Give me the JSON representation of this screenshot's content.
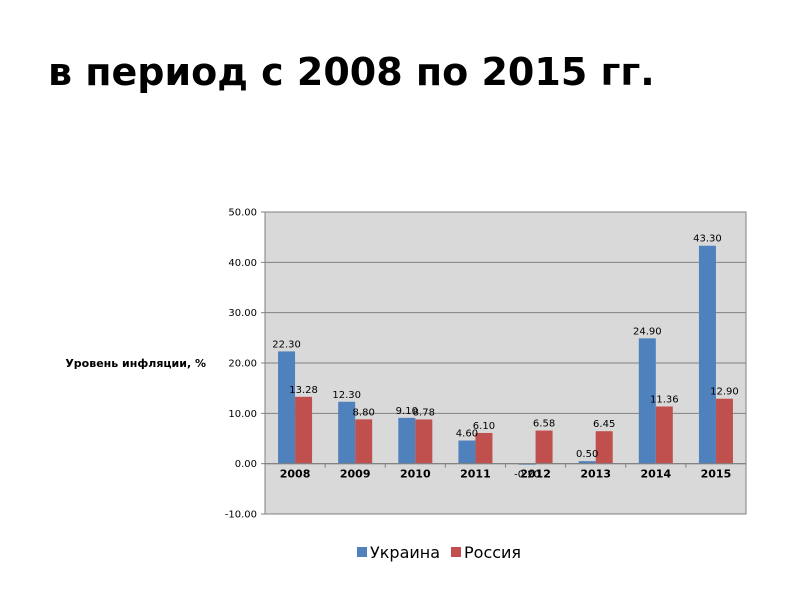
{
  "title": "в период с 2008 по 2015 гг.",
  "chart_data": {
    "type": "bar",
    "categories": [
      "2008",
      "2009",
      "2010",
      "2011",
      "2012",
      "2013",
      "2014",
      "2015"
    ],
    "series": [
      {
        "name": "Украина",
        "color": "#4F81BD",
        "values": [
          22.3,
          12.3,
          9.1,
          4.6,
          -0.2,
          0.5,
          24.9,
          43.3
        ],
        "labels": [
          "22.30",
          "12.30",
          "9.10",
          "4.60",
          "-0.20",
          "0.50",
          "24.90",
          "43.30"
        ]
      },
      {
        "name": "Россия",
        "color": "#C0504D",
        "values": [
          13.28,
          8.8,
          8.78,
          6.1,
          6.58,
          6.45,
          11.36,
          12.9
        ],
        "labels": [
          "13.28",
          "8.80",
          "8.78",
          "6.10",
          "6.58",
          "6.45",
          "11.36",
          "12.90"
        ]
      }
    ],
    "ylabel": "Уровень инфляции, %",
    "xlabel": "",
    "ylim": [
      -10,
      50
    ],
    "yticks": [
      {
        "value": 50,
        "label": "50.00"
      },
      {
        "value": 40,
        "label": "40.00"
      },
      {
        "value": 30,
        "label": "30.00"
      },
      {
        "value": 20,
        "label": "20.00"
      },
      {
        "value": 10,
        "label": "10.00"
      },
      {
        "value": 0,
        "label": "0.00"
      },
      {
        "value": -10,
        "label": "-10.00"
      }
    ],
    "grid": true,
    "plot_background": "#D9D9D9",
    "legend_position": "bottom"
  }
}
